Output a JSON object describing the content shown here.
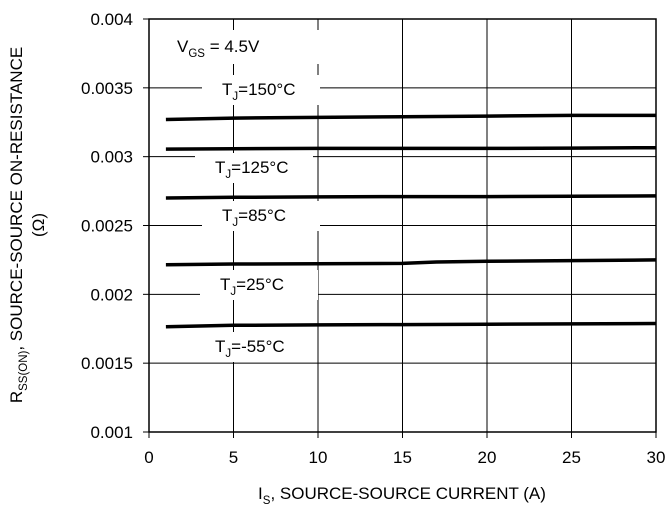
{
  "chart_data": {
    "type": "line",
    "xlim": [
      0,
      30
    ],
    "ylim": [
      0.001,
      0.004
    ],
    "x_ticks": [
      0,
      5,
      10,
      15,
      20,
      25,
      30
    ],
    "x_tick_labels": [
      "0",
      "5",
      "10",
      "15",
      "20",
      "25",
      "30"
    ],
    "y_ticks": [
      0.001,
      0.0015,
      0.002,
      0.0025,
      0.003,
      0.0035,
      0.004
    ],
    "y_tick_labels": [
      "0.001",
      "0.0015",
      "0.002",
      "0.0025",
      "0.003",
      "0.0035",
      "0.004"
    ],
    "grid": true,
    "xlabel": {
      "main": "I",
      "sub": "S",
      "rest": ", SOURCE-SOURCE CURRENT (A)"
    },
    "ylabel": {
      "main": "R",
      "sub": "SS(ON)",
      "rest": ", SOURCE-SOURCE ON-RESISTANCE"
    },
    "ylabel_unit": "(Ω)",
    "condition": {
      "main": "V",
      "sub": "GS",
      "rest": " = 4.5V"
    },
    "series": [
      {
        "name": "T_J=150°C",
        "label": {
          "main": "T",
          "sub": "J",
          "rest": "=150°C"
        },
        "x": [
          1,
          5,
          10,
          15,
          20,
          25,
          30
        ],
        "y": [
          0.00327,
          0.00328,
          0.003285,
          0.00329,
          0.003295,
          0.0033,
          0.0033
        ]
      },
      {
        "name": "T_J=125°C",
        "label": {
          "main": "T",
          "sub": "J",
          "rest": "=125°C"
        },
        "x": [
          1,
          5,
          10,
          15,
          20,
          25,
          30
        ],
        "y": [
          0.003055,
          0.003058,
          0.00306,
          0.00306,
          0.00306,
          0.003062,
          0.003065
        ]
      },
      {
        "name": "T_J=85°C",
        "label": {
          "main": "T",
          "sub": "J",
          "rest": "=85°C"
        },
        "x": [
          1,
          5,
          10,
          15,
          20,
          25,
          30
        ],
        "y": [
          0.0027,
          0.002705,
          0.002708,
          0.00271,
          0.00271,
          0.002712,
          0.002715
        ]
      },
      {
        "name": "T_J=25°C",
        "label": {
          "main": "T",
          "sub": "J",
          "rest": "=25°C"
        },
        "x": [
          1,
          5,
          10,
          15,
          17,
          20,
          25,
          30
        ],
        "y": [
          0.002215,
          0.00222,
          0.002222,
          0.002225,
          0.002235,
          0.00224,
          0.002245,
          0.00225
        ]
      },
      {
        "name": "T_J=-55°C",
        "label": {
          "main": "T",
          "sub": "J",
          "rest": "=-55°C"
        },
        "x": [
          1,
          5,
          10,
          15,
          20,
          25,
          30
        ],
        "y": [
          0.001765,
          0.001775,
          0.001778,
          0.00178,
          0.001783,
          0.001785,
          0.001788
        ]
      }
    ]
  }
}
